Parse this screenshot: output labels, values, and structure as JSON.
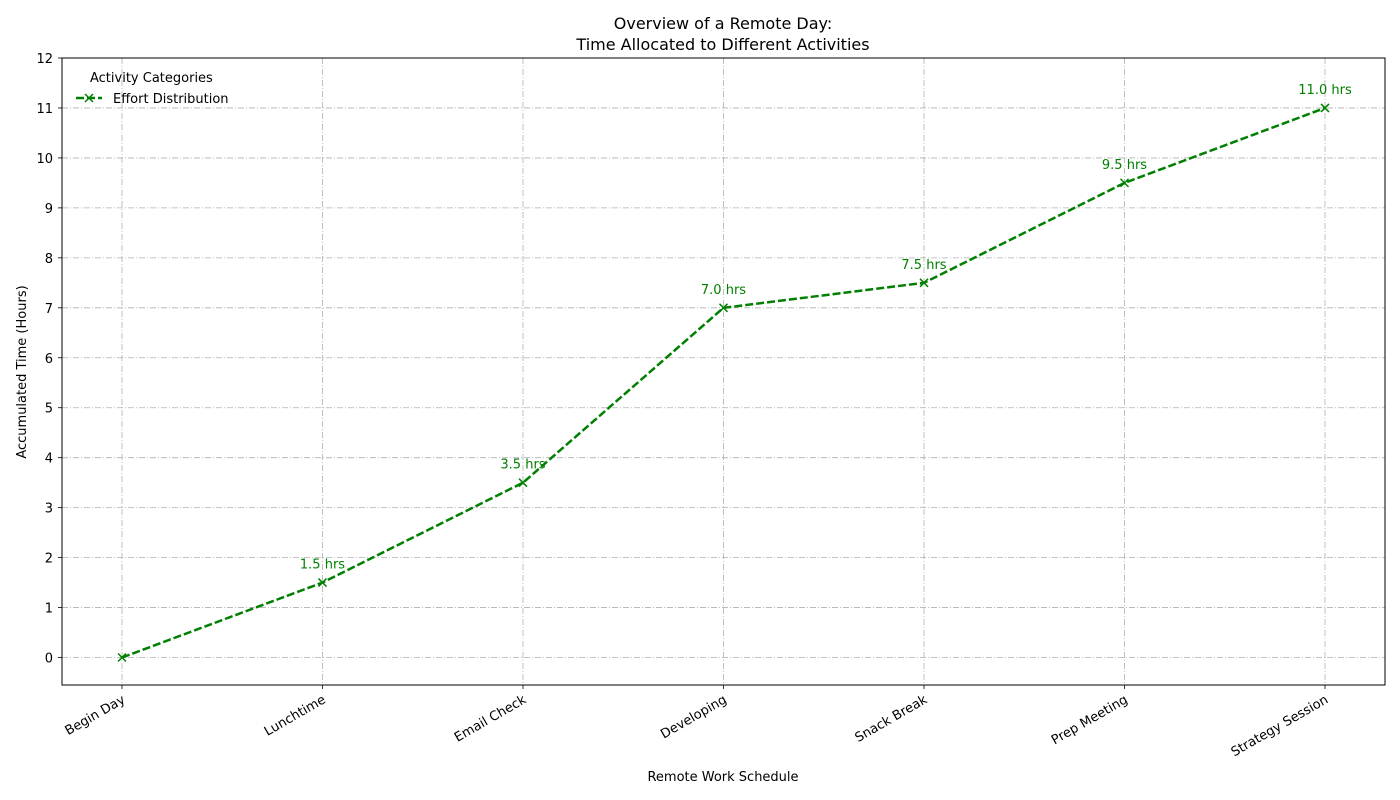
{
  "chart_data": {
    "type": "line",
    "title_line1": "Overview of a Remote Day:",
    "title_line2": "Time Allocated to Different Activities",
    "xlabel": "Remote Work Schedule",
    "ylabel": "Accumulated Time (Hours)",
    "categories": [
      "Begin Day",
      "Lunchtime",
      "Email Check",
      "Developing",
      "Snack Break",
      "Prep Meeting",
      "Strategy Session"
    ],
    "series": [
      {
        "name": "Effort Distribution",
        "values": [
          0,
          1.5,
          3.5,
          7.0,
          7.5,
          9.5,
          11.0
        ],
        "data_labels": [
          "",
          "1.5 hrs",
          "3.5 hrs",
          "7.0 hrs",
          "7.5 hrs",
          "9.5 hrs",
          "11.0 hrs"
        ],
        "color": "#008000",
        "line_style": "dashed",
        "marker": "x"
      }
    ],
    "ylim": [
      -0.55,
      12
    ],
    "yticks": [
      "0",
      "1",
      "2",
      "3",
      "4",
      "5",
      "6",
      "7",
      "8",
      "9",
      "10",
      "11",
      "12"
    ],
    "grid": true,
    "legend": {
      "title": "Activity Categories",
      "placement": "top-left"
    }
  }
}
